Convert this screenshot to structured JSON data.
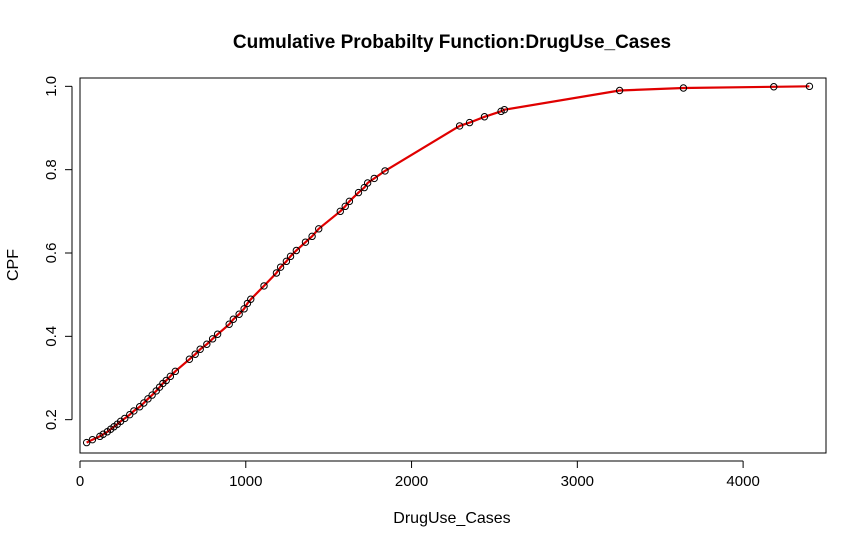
{
  "chart_data": {
    "type": "line",
    "title": "Cumulative Probabilty Function:DrugUse_Cases",
    "xlabel": "DrugUse_Cases",
    "ylabel": "CPF",
    "xlim": [
      0,
      4500
    ],
    "ylim": [
      0.12,
      1.02
    ],
    "xticks": [
      0,
      1000,
      2000,
      3000,
      4000
    ],
    "yticks": [
      0.2,
      0.4,
      0.6,
      0.8,
      1.0
    ],
    "ytick_labels": [
      "0.2",
      "0.4",
      "0.6",
      "0.8",
      "1.0"
    ],
    "grid": false,
    "line_color": "#e00000",
    "marker_color": "#000000",
    "marker": "open-circle",
    "series": [
      {
        "x": [
          40,
          75,
          120,
          140,
          165,
          185,
          205,
          225,
          245,
          270,
          300,
          325,
          360,
          385,
          410,
          435,
          460,
          480,
          500,
          520,
          545,
          575,
          660,
          695,
          725,
          765,
          800,
          830,
          900,
          925,
          960,
          990,
          1010,
          1030,
          1110,
          1185,
          1210,
          1245,
          1270,
          1305,
          1360,
          1400,
          1440,
          1570,
          1600,
          1625,
          1680,
          1715,
          1735,
          1775,
          1840,
          2290,
          2350,
          2440,
          2540,
          2560,
          3255,
          3640,
          4185,
          4400
        ],
        "y": [
          0.145,
          0.152,
          0.16,
          0.165,
          0.171,
          0.177,
          0.183,
          0.189,
          0.196,
          0.203,
          0.212,
          0.221,
          0.231,
          0.24,
          0.25,
          0.259,
          0.269,
          0.278,
          0.287,
          0.294,
          0.304,
          0.316,
          0.345,
          0.357,
          0.369,
          0.381,
          0.394,
          0.405,
          0.429,
          0.441,
          0.453,
          0.466,
          0.479,
          0.489,
          0.521,
          0.552,
          0.566,
          0.58,
          0.592,
          0.606,
          0.626,
          0.64,
          0.658,
          0.7,
          0.712,
          0.724,
          0.745,
          0.757,
          0.768,
          0.779,
          0.797,
          0.905,
          0.913,
          0.927,
          0.94,
          0.944,
          0.99,
          0.996,
          0.999,
          1.0
        ]
      }
    ]
  }
}
